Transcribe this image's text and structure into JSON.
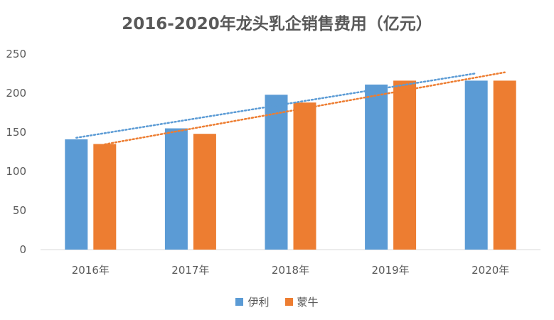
{
  "chart_data": {
    "type": "bar",
    "title": "2016-2020年龙头乳企销售费用（亿元）",
    "xlabel": "",
    "ylabel": "",
    "categories": [
      "2016年",
      "2017年",
      "2018年",
      "2019年",
      "2020年"
    ],
    "series": [
      {
        "name": "伊利",
        "values": [
          141,
          155,
          198,
          211,
          216
        ],
        "color": "#5B9BD5"
      },
      {
        "name": "蒙牛",
        "values": [
          135,
          148,
          188,
          216,
          216
        ],
        "color": "#ED7D31"
      }
    ],
    "ylim": [
      0,
      250
    ],
    "yticks": [
      0,
      50,
      100,
      150,
      200,
      250
    ],
    "trendlines": "linear, dotted, one per series",
    "grid": false,
    "legend_position": "bottom"
  }
}
